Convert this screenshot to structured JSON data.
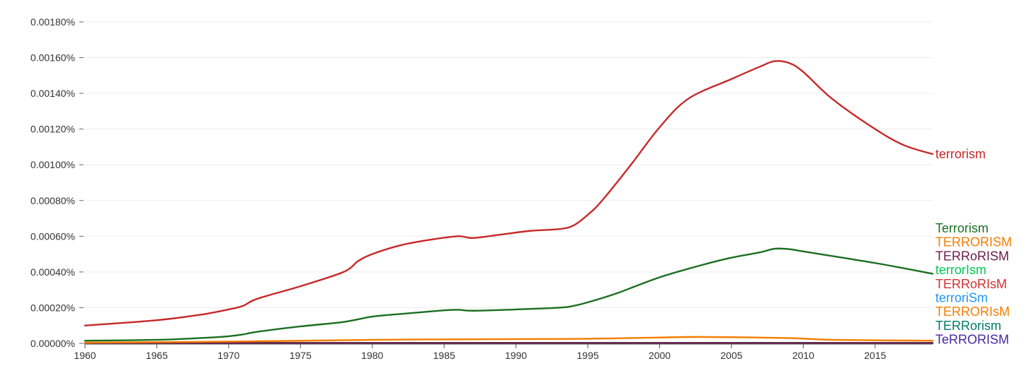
{
  "chart_data": {
    "type": "line",
    "title": "",
    "xlabel": "",
    "ylabel": "",
    "xlim": [
      1960,
      2019
    ],
    "ylim": [
      0,
      0.0018
    ],
    "grid": true,
    "y_ticks": [
      "0.00180%",
      "0.00160%",
      "0.00140%",
      "0.00120%",
      "0.00100%",
      "0.00080%",
      "0.00060%",
      "0.00040%",
      "0.00020%",
      "0.00000%"
    ],
    "x_ticks": [
      "1960",
      "1965",
      "1970",
      "1975",
      "1980",
      "1985",
      "1990",
      "1995",
      "2000",
      "2005",
      "2010",
      "2015"
    ],
    "series": [
      {
        "name": "terrorism",
        "color": "#c62828",
        "x": [
          1960,
          1965,
          1968,
          1970,
          1971,
          1972,
          1975,
          1978,
          1979,
          1980,
          1982,
          1984,
          1986,
          1987,
          1989,
          1991,
          1993,
          1994,
          1995,
          1996,
          1998,
          2000,
          2002,
          2005,
          2007,
          2008,
          2009,
          2010,
          2012,
          2015,
          2017,
          2019
        ],
        "values": [
          0.0001,
          0.00013,
          0.00016,
          0.00019,
          0.00021,
          0.00025,
          0.00032,
          0.0004,
          0.00046,
          0.0005,
          0.00055,
          0.00058,
          0.0006,
          0.00059,
          0.00061,
          0.00063,
          0.00064,
          0.00066,
          0.00072,
          0.0008,
          0.001,
          0.00121,
          0.00137,
          0.00148,
          0.00155,
          0.00158,
          0.00157,
          0.00152,
          0.00137,
          0.0012,
          0.00111,
          0.00106
        ]
      },
      {
        "name": "Terrorism",
        "color": "#1b6e20",
        "x": [
          1960,
          1965,
          1968,
          1970,
          1971,
          1972,
          1975,
          1978,
          1980,
          1982,
          1985,
          1986,
          1987,
          1990,
          1993,
          1994,
          1995,
          1997,
          2000,
          2003,
          2005,
          2007,
          2008,
          2009,
          2010,
          2015,
          2019
        ],
        "values": [
          1.5e-05,
          2e-05,
          3e-05,
          4e-05,
          5e-05,
          6.5e-05,
          9.5e-05,
          0.00012,
          0.00015,
          0.000165,
          0.000185,
          0.000188,
          0.000183,
          0.00019,
          0.0002,
          0.00021,
          0.00023,
          0.00028,
          0.00037,
          0.00044,
          0.00048,
          0.00051,
          0.00053,
          0.000528,
          0.000515,
          0.00045,
          0.00039
        ]
      },
      {
        "name": "TERRORISM",
        "color": "#f57c00",
        "x": [
          1960,
          1970,
          1980,
          1990,
          1995,
          2000,
          2003,
          2009,
          2012,
          2019
        ],
        "values": [
          4e-06,
          1e-05,
          2e-05,
          2.4e-05,
          2.6e-05,
          3.3e-05,
          3.6e-05,
          3e-05,
          2e-05,
          1.5e-05
        ]
      },
      {
        "name": "TERRoRISM",
        "color": "#6a1b4d",
        "x": [
          1960,
          2019
        ],
        "values": [
          2e-06,
          2e-06
        ]
      },
      {
        "name": "terrorIsm",
        "color": "#00c853",
        "x": [
          1960,
          2019
        ],
        "values": [
          2e-06,
          2e-06
        ]
      },
      {
        "name": "TERRoRIsM",
        "color": "#d32f2f",
        "x": [
          1960,
          2019
        ],
        "values": [
          2e-06,
          2e-06
        ]
      },
      {
        "name": "terroriSm",
        "color": "#2196f3",
        "x": [
          1960,
          2019
        ],
        "values": [
          2e-06,
          2e-06
        ]
      },
      {
        "name": "TERRORIsM",
        "color": "#f57c00",
        "x": [
          1960,
          2019
        ],
        "values": [
          2e-06,
          2e-06
        ]
      },
      {
        "name": "TERRorism",
        "color": "#00796b",
        "x": [
          1960,
          2019
        ],
        "values": [
          2e-06,
          2e-06
        ]
      },
      {
        "name": "TeRRORISM",
        "color": "#4527a0",
        "x": [
          1960,
          2019
        ],
        "values": [
          3e-06,
          3e-06
        ]
      }
    ]
  }
}
